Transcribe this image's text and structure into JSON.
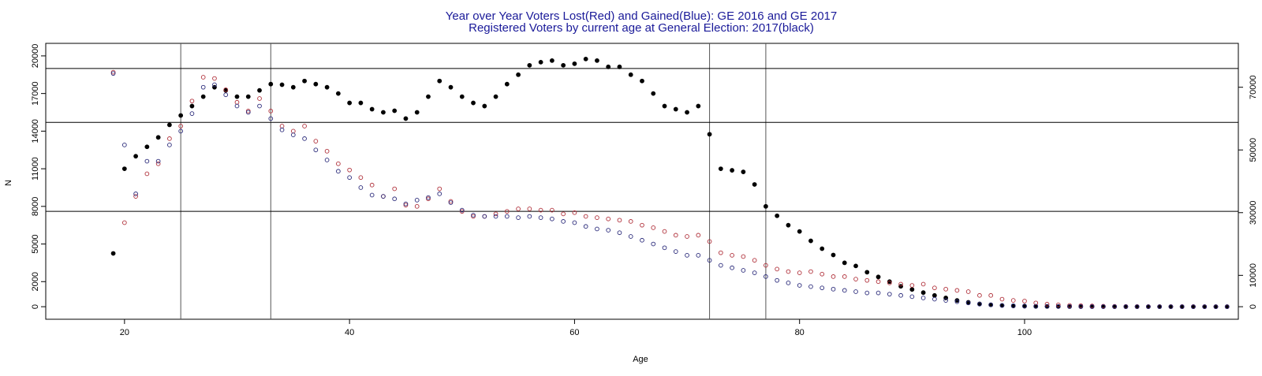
{
  "chart_data": {
    "type": "scatter",
    "title": "Year over Year Voters Lost(Red) and Gained(Blue): GE 2016 and GE 2017",
    "subtitle": "Registered Voters by current age at General Election: 2017(black)",
    "xlabel": "Age",
    "ylabel": "N",
    "xlim": [
      13,
      119
    ],
    "ylim": [
      -1000,
      21000
    ],
    "y2lim": [
      -4000,
      84000
    ],
    "x_ticks": [
      "20",
      "40",
      "60",
      "80",
      "100"
    ],
    "y_ticks": [
      "0",
      "2000",
      "5000",
      "8000",
      "11000",
      "14000",
      "17000",
      "20000"
    ],
    "y2_ticks": [
      "0",
      "10000",
      "30000",
      "50000",
      "70000"
    ],
    "vlines": [
      25,
      33,
      72,
      77
    ],
    "hlines": [
      19000,
      14700,
      7600
    ],
    "grid": false,
    "series": [
      {
        "color": "#000000",
        "style": "filled",
        "axis": "right",
        "x": [
          19,
          20,
          21,
          22,
          23,
          24,
          25,
          26,
          27,
          28,
          29,
          30,
          31,
          32,
          33,
          34,
          35,
          36,
          37,
          38,
          39,
          40,
          41,
          42,
          43,
          44,
          45,
          46,
          47,
          48,
          49,
          50,
          51,
          52,
          53,
          54,
          55,
          56,
          57,
          58,
          59,
          60,
          61,
          62,
          63,
          64,
          65,
          66,
          67,
          68,
          69,
          70,
          71,
          72,
          73,
          74,
          75,
          76,
          77,
          78,
          79,
          80,
          81,
          82,
          83,
          84,
          85,
          86,
          87,
          88,
          89,
          90,
          91,
          92,
          93,
          94,
          95,
          96,
          97,
          98,
          99,
          100,
          101,
          102,
          103,
          104,
          105,
          106,
          107,
          108,
          109,
          110,
          111,
          112,
          113,
          114,
          115,
          116,
          117,
          118
        ],
        "y": [
          17000,
          44000,
          48000,
          51000,
          54000,
          58000,
          61000,
          64000,
          67000,
          70000,
          69000,
          67000,
          67000,
          69000,
          71000,
          70800,
          70000,
          72000,
          71000,
          70000,
          68000,
          65000,
          65000,
          63000,
          62000,
          62500,
          60000,
          62000,
          67000,
          72000,
          70000,
          67000,
          65000,
          64000,
          67000,
          71000,
          74000,
          77000,
          78000,
          78500,
          77000,
          77500,
          79000,
          78500,
          76500,
          76500,
          74000,
          72000,
          68000,
          64000,
          63000,
          62000,
          64000,
          55000,
          44000,
          43500,
          43000,
          39000,
          32000,
          29000,
          26000,
          24000,
          21000,
          18500,
          16500,
          14000,
          13000,
          11000,
          9500,
          8000,
          6500,
          5500,
          4500,
          3600,
          2800,
          2000,
          1400,
          900,
          600,
          400,
          250,
          150,
          100,
          80,
          60,
          45,
          35,
          25,
          20,
          15,
          12,
          10,
          8,
          6,
          5,
          4,
          3,
          2,
          2,
          1
        ]
      },
      {
        "color": "#b0303a",
        "style": "open",
        "axis": "left",
        "x": [
          19,
          20,
          21,
          22,
          23,
          24,
          25,
          26,
          27,
          28,
          29,
          30,
          31,
          32,
          33,
          34,
          35,
          36,
          37,
          38,
          39,
          40,
          41,
          42,
          43,
          44,
          45,
          46,
          47,
          48,
          49,
          50,
          51,
          52,
          53,
          54,
          55,
          56,
          57,
          58,
          59,
          60,
          61,
          62,
          63,
          64,
          65,
          66,
          67,
          68,
          69,
          70,
          71,
          72,
          73,
          74,
          75,
          76,
          77,
          78,
          79,
          80,
          81,
          82,
          83,
          84,
          85,
          86,
          87,
          88,
          89,
          90,
          91,
          92,
          93,
          94,
          95,
          96,
          97,
          98,
          99,
          100,
          101,
          102,
          103,
          104,
          105,
          106,
          107,
          108,
          109,
          110,
          111,
          112,
          113,
          114,
          115,
          116,
          117,
          118
        ],
        "y": [
          18700,
          6700,
          8800,
          10600,
          11400,
          13400,
          14400,
          16400,
          18300,
          18200,
          17300,
          16300,
          15600,
          16600,
          15600,
          14400,
          14000,
          14400,
          13200,
          12400,
          11400,
          10900,
          10300,
          9700,
          8800,
          9400,
          8100,
          8000,
          8600,
          9400,
          8400,
          7600,
          7200,
          7200,
          7400,
          7600,
          7800,
          7800,
          7700,
          7700,
          7400,
          7500,
          7200,
          7100,
          7000,
          6900,
          6800,
          6500,
          6300,
          6000,
          5700,
          5600,
          5700,
          5200,
          4300,
          4100,
          4000,
          3700,
          3300,
          3000,
          2800,
          2700,
          2800,
          2600,
          2400,
          2400,
          2200,
          2100,
          2000,
          1900,
          1800,
          1700,
          1800,
          1500,
          1400,
          1300,
          1200,
          900,
          900,
          600,
          500,
          450,
          300,
          200,
          150,
          100,
          80,
          60,
          40,
          30,
          20,
          15,
          10,
          8,
          6,
          5,
          4,
          3,
          0,
          0
        ]
      },
      {
        "color": "#2a2a7a",
        "style": "open",
        "axis": "left",
        "x": [
          19,
          20,
          21,
          22,
          23,
          24,
          25,
          26,
          27,
          28,
          29,
          30,
          31,
          32,
          33,
          34,
          35,
          36,
          37,
          38,
          39,
          40,
          41,
          42,
          43,
          44,
          45,
          46,
          47,
          48,
          49,
          50,
          51,
          52,
          53,
          54,
          55,
          56,
          57,
          58,
          59,
          60,
          61,
          62,
          63,
          64,
          65,
          66,
          67,
          68,
          69,
          70,
          71,
          72,
          73,
          74,
          75,
          76,
          77,
          78,
          79,
          80,
          81,
          82,
          83,
          84,
          85,
          86,
          87,
          88,
          89,
          90,
          91,
          92,
          93,
          94,
          95,
          96,
          97,
          98,
          99,
          100,
          101,
          102,
          103,
          104,
          105,
          106,
          107,
          108,
          109,
          110,
          111,
          112,
          113,
          114,
          115,
          116,
          117,
          118
        ],
        "y": [
          18600,
          12900,
          9000,
          11600,
          11600,
          12900,
          14000,
          15400,
          17500,
          17700,
          16900,
          16000,
          15500,
          16000,
          15000,
          14100,
          13700,
          13400,
          12500,
          11700,
          10800,
          10300,
          9500,
          8900,
          8800,
          8600,
          8200,
          8500,
          8700,
          9000,
          8300,
          7700,
          7300,
          7200,
          7200,
          7200,
          7100,
          7200,
          7100,
          7000,
          6800,
          6700,
          6400,
          6200,
          6100,
          5900,
          5600,
          5300,
          5000,
          4700,
          4400,
          4100,
          4100,
          3700,
          3300,
          3100,
          2900,
          2700,
          2400,
          2100,
          1900,
          1700,
          1600,
          1500,
          1400,
          1300,
          1200,
          1100,
          1100,
          1000,
          900,
          800,
          700,
          600,
          500,
          400,
          300,
          200,
          150,
          100,
          80,
          60,
          40,
          30,
          20,
          15,
          10,
          8,
          6,
          5,
          4,
          3,
          2,
          2,
          1,
          1,
          0,
          0,
          0,
          0
        ]
      }
    ]
  }
}
